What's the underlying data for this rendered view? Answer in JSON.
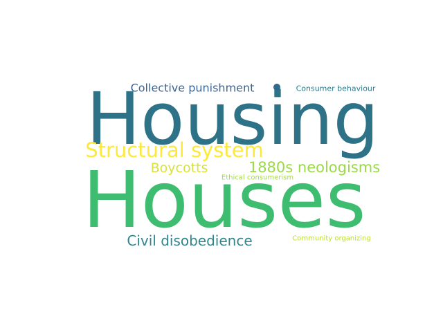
{
  "words": [
    {
      "text": "Housing",
      "color": "#2e7287"
    },
    {
      "text": "Houses",
      "color": "#3ebd71"
    },
    {
      "text": "Structural system",
      "color": "#fde93a"
    },
    {
      "text": "1880s neologisms",
      "color": "#9bd84a"
    },
    {
      "text": "Boycotts",
      "color": "#d8e23c"
    },
    {
      "text": "Civil disobedience",
      "color": "#31868e"
    },
    {
      "text": "Collective punishment",
      "color": "#3a6390"
    },
    {
      "text": "Consumer behaviour",
      "color": "#2d7b8c"
    },
    {
      "text": "Ethical consumerism",
      "color": "#a5db47"
    },
    {
      "text": "Community organizing",
      "color": "#bcdd3e"
    },
    {
      "text": "",
      "color": "#2f6a8e"
    }
  ]
}
